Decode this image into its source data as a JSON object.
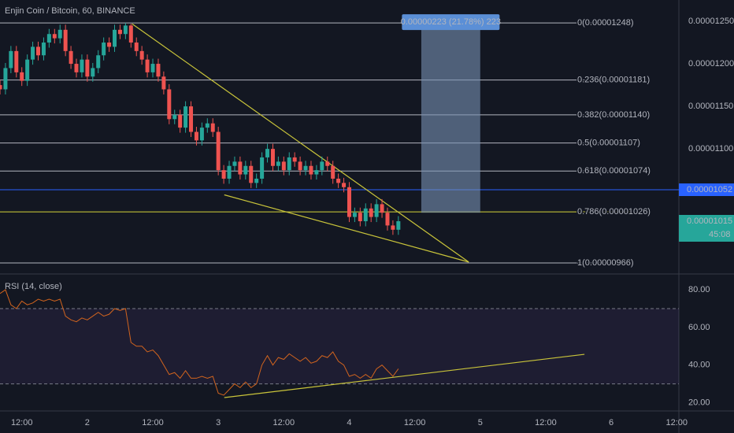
{
  "chart_data": {
    "type": "candlestick",
    "title": "Enjin Coin / Bitcoin, 60, BINANCE",
    "up_color": "#26a69a",
    "down_color": "#ef5350",
    "x": [
      0,
      1,
      2,
      3,
      4,
      5,
      6,
      7,
      8,
      9,
      10,
      11,
      12,
      13,
      14,
      15,
      16,
      17,
      18,
      19,
      20,
      21,
      22,
      23,
      24,
      25,
      26,
      27,
      28,
      29,
      30,
      31,
      32,
      33,
      34,
      35,
      36,
      37,
      38,
      39,
      40,
      41,
      42,
      43,
      44,
      45,
      46,
      47,
      48,
      49,
      50,
      51,
      52,
      53,
      54,
      55,
      56,
      57,
      58,
      59,
      60,
      61,
      62,
      63,
      64,
      65,
      66,
      67,
      68,
      69,
      70,
      71,
      72,
      73
    ],
    "open": [
      1.175e-05,
      1.17e-05,
      1.195e-05,
      1.215e-05,
      1.19e-05,
      1.18e-05,
      1.205e-05,
      1.22e-05,
      1.21e-05,
      1.225e-05,
      1.235e-05,
      1.23e-05,
      1.24e-05,
      1.215e-05,
      1.2e-05,
      1.19e-05,
      1.205e-05,
      1.185e-05,
      1.195e-05,
      1.21e-05,
      1.225e-05,
      1.22e-05,
      1.24e-05,
      1.235e-05,
      1.245e-05,
      1.225e-05,
      1.215e-05,
      1.205e-05,
      1.19e-05,
      1.2e-05,
      1.185e-05,
      1.17e-05,
      1.135e-05,
      1.14e-05,
      1.125e-05,
      1.15e-05,
      1.12e-05,
      1.11e-05,
      1.125e-05,
      1.13e-05,
      1.12e-05,
      1.075e-05,
      1.065e-05,
      1.08e-05,
      1.085e-05,
      1.07e-05,
      1.08e-05,
      1.06e-05,
      1.065e-05,
      1.09e-05,
      1.1e-05,
      1.08e-05,
      1.085e-05,
      1.075e-05,
      1.09e-05,
      1.085e-05,
      1.075e-05,
      1.08e-05,
      1.07e-05,
      1.075e-05,
      1.085e-05,
      1.08e-05,
      1.065e-05,
      1.06e-05,
      1.055e-05,
      1.02e-05,
      1.025e-05,
      1.015e-05,
      1.03e-05,
      1.02e-05,
      1.035e-05,
      1.025e-05,
      1.01e-05,
      1.005e-05
    ],
    "high": [
      1.181e-05,
      1.201e-05,
      1.221e-05,
      1.221e-05,
      1.196e-05,
      1.211e-05,
      1.226e-05,
      1.226e-05,
      1.231e-05,
      1.241e-05,
      1.241e-05,
      1.246e-05,
      1.246e-05,
      1.221e-05,
      1.206e-05,
      1.211e-05,
      1.211e-05,
      1.201e-05,
      1.216e-05,
      1.231e-05,
      1.231e-05,
      1.246e-05,
      1.246e-05,
      1.248e-05,
      1.247e-05,
      1.231e-05,
      1.221e-05,
      1.211e-05,
      1.206e-05,
      1.206e-05,
      1.191e-05,
      1.176e-05,
      1.146e-05,
      1.146e-05,
      1.156e-05,
      1.156e-05,
      1.126e-05,
      1.131e-05,
      1.136e-05,
      1.136e-05,
      1.126e-05,
      1.081e-05,
      1.086e-05,
      1.091e-05,
      1.091e-05,
      1.086e-05,
      1.086e-05,
      1.071e-05,
      1.096e-05,
      1.106e-05,
      1.106e-05,
      1.091e-05,
      1.091e-05,
      1.096e-05,
      1.096e-05,
      1.091e-05,
      1.086e-05,
      1.086e-05,
      1.081e-05,
      1.091e-05,
      1.091e-05,
      1.086e-05,
      1.071e-05,
      1.066e-05,
      1.061e-05,
      1.031e-05,
      1.031e-05,
      1.036e-05,
      1.036e-05,
      1.041e-05,
      1.041e-05,
      1.031e-05,
      1.016e-05,
      1.021e-05
    ],
    "low": [
      1.164e-05,
      1.164e-05,
      1.189e-05,
      1.184e-05,
      1.174e-05,
      1.174e-05,
      1.199e-05,
      1.204e-05,
      1.204e-05,
      1.219e-05,
      1.224e-05,
      1.224e-05,
      1.209e-05,
      1.194e-05,
      1.184e-05,
      1.184e-05,
      1.179e-05,
      1.179e-05,
      1.189e-05,
      1.204e-05,
      1.214e-05,
      1.214e-05,
      1.229e-05,
      1.229e-05,
      1.219e-05,
      1.209e-05,
      1.199e-05,
      1.184e-05,
      1.184e-05,
      1.179e-05,
      1.164e-05,
      1.129e-05,
      1.129e-05,
      1.119e-05,
      1.119e-05,
      1.114e-05,
      1.104e-05,
      1.104e-05,
      1.119e-05,
      1.114e-05,
      1.069e-05,
      1.059e-05,
      1.059e-05,
      1.074e-05,
      1.064e-05,
      1.064e-05,
      1.054e-05,
      1.054e-05,
      1.059e-05,
      1.084e-05,
      1.074e-05,
      1.074e-05,
      1.069e-05,
      1.069e-05,
      1.079e-05,
      1.069e-05,
      1.069e-05,
      1.064e-05,
      1.064e-05,
      1.069e-05,
      1.074e-05,
      1.059e-05,
      1.054e-05,
      1.049e-05,
      1.014e-05,
      1.014e-05,
      1.009e-05,
      1.009e-05,
      1.014e-05,
      1.014e-05,
      1.019e-05,
      1.004e-05,
      9.99e-06,
      9.99e-06
    ],
    "close": [
      1.17e-05,
      1.195e-05,
      1.215e-05,
      1.19e-05,
      1.18e-05,
      1.205e-05,
      1.22e-05,
      1.21e-05,
      1.225e-05,
      1.235e-05,
      1.23e-05,
      1.24e-05,
      1.215e-05,
      1.2e-05,
      1.19e-05,
      1.205e-05,
      1.185e-05,
      1.195e-05,
      1.21e-05,
      1.225e-05,
      1.22e-05,
      1.24e-05,
      1.235e-05,
      1.245e-05,
      1.225e-05,
      1.215e-05,
      1.205e-05,
      1.19e-05,
      1.2e-05,
      1.185e-05,
      1.17e-05,
      1.135e-05,
      1.14e-05,
      1.125e-05,
      1.15e-05,
      1.12e-05,
      1.11e-05,
      1.125e-05,
      1.13e-05,
      1.12e-05,
      1.075e-05,
      1.065e-05,
      1.08e-05,
      1.085e-05,
      1.07e-05,
      1.08e-05,
      1.06e-05,
      1.065e-05,
      1.09e-05,
      1.1e-05,
      1.08e-05,
      1.085e-05,
      1.075e-05,
      1.09e-05,
      1.085e-05,
      1.075e-05,
      1.08e-05,
      1.07e-05,
      1.075e-05,
      1.085e-05,
      1.08e-05,
      1.065e-05,
      1.06e-05,
      1.055e-05,
      1.02e-05,
      1.025e-05,
      1.015e-05,
      1.03e-05,
      1.02e-05,
      1.035e-05,
      1.025e-05,
      1.01e-05,
      1.005e-05,
      1.015e-05
    ],
    "ylim": [
      9.53e-06,
      1.275e-05
    ],
    "yticks": [
      {
        "value": 1.25e-05,
        "label": "0.00001250"
      },
      {
        "value": 1.2e-05,
        "label": "0.00001200"
      },
      {
        "value": 1.15e-05,
        "label": "0.00001150"
      },
      {
        "value": 1.1e-05,
        "label": "0.00001100"
      }
    ],
    "xlim": [
      0,
      124.4
    ],
    "xticks": [
      {
        "value": 4,
        "label": "12:00"
      },
      {
        "value": 16,
        "label": "2"
      },
      {
        "value": 28,
        "label": "12:00"
      },
      {
        "value": 40,
        "label": "3"
      },
      {
        "value": 52,
        "label": "12:00"
      },
      {
        "value": 64,
        "label": "4"
      },
      {
        "value": 76,
        "label": "12:00"
      },
      {
        "value": 88,
        "label": "5"
      },
      {
        "value": 100,
        "label": "12:00"
      },
      {
        "value": 112,
        "label": "6"
      },
      {
        "value": 124,
        "label": "12:00"
      }
    ],
    "fib_levels": [
      {
        "value": 1.248e-05,
        "label": "0(0.00001248)",
        "color": "#b2b5be"
      },
      {
        "value": 1.181e-05,
        "label": "0.236(0.00001181)",
        "color": "#b2b5be"
      },
      {
        "value": 1.14e-05,
        "label": "0.382(0.00001140)",
        "color": "#b2b5be"
      },
      {
        "value": 1.107e-05,
        "label": "0.5(0.00001107)",
        "color": "#b2b5be"
      },
      {
        "value": 1.074e-05,
        "label": "0.618(0.00001074)",
        "color": "#b2b5be"
      },
      {
        "value": 1.026e-05,
        "label": "0.786(0.00001026)",
        "color": "#d4d43a"
      },
      {
        "value": 9.66e-06,
        "label": "1(0.00000966)",
        "color": "#b2b5be"
      }
    ],
    "measure": {
      "label": "0.00000223 (21.78%) 223",
      "x": [
        77.2,
        88
      ],
      "y": [
        1.248e-05,
        1.025e-05
      ]
    },
    "trendlines": [
      {
        "x": [
          24.2,
          85.9
        ],
        "y": [
          1.247e-05,
          9.67e-06
        ]
      },
      {
        "x": [
          41.1,
          85.9
        ],
        "y": [
          1.046e-05,
          9.67e-06
        ]
      }
    ],
    "level_line": {
      "value": 1.052e-05,
      "color": "#2962ff"
    },
    "last_price": {
      "value": 1.015e-05,
      "countdown": "45:08"
    },
    "rsi": {
      "title": "RSI (14, close)",
      "color": "#d2641e",
      "values": [
        78,
        80,
        72,
        70,
        74,
        72,
        73,
        75,
        74,
        75,
        74,
        75,
        66,
        64,
        63,
        65,
        64,
        66,
        68,
        66,
        67,
        70,
        69,
        70,
        52,
        50,
        50,
        47,
        48,
        45,
        40,
        35,
        36,
        33,
        37,
        33,
        33,
        34,
        33,
        34,
        25,
        24,
        27,
        30,
        28,
        31,
        28,
        30,
        40,
        45,
        40,
        44,
        43,
        46,
        44,
        42,
        44,
        41,
        42,
        45,
        44,
        47,
        42,
        40,
        34,
        35,
        33,
        35,
        33,
        38,
        40,
        37,
        34,
        38
      ],
      "ylim": [
        15.6,
        88.4
      ],
      "yticks": [
        {
          "value": 80,
          "label": "80.00"
        },
        {
          "value": 60,
          "label": "60.00"
        },
        {
          "value": 40,
          "label": "40.00"
        },
        {
          "value": 20,
          "label": "20.00"
        }
      ],
      "bands": [
        70,
        30
      ],
      "trendline": {
        "x": [
          41.1,
          107.1
        ],
        "y": [
          22.7,
          45.7
        ]
      }
    }
  }
}
